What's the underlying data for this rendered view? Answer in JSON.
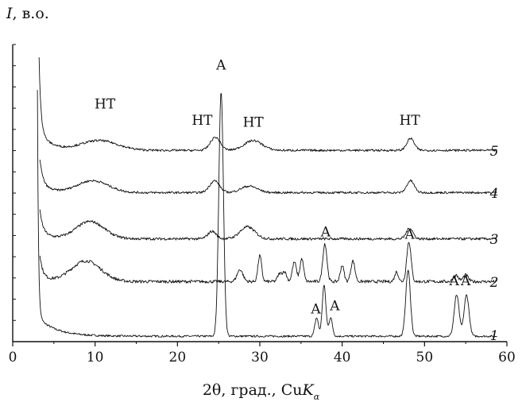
{
  "chart_data": {
    "type": "line",
    "title": "",
    "ylabel": {
      "symbol": "I",
      "unit": ", в.о."
    },
    "xlabel": {
      "main": "2θ, град., Cu",
      "k": "K",
      "sub": "α"
    },
    "xlim": [
      0,
      60
    ],
    "xticks": [
      0,
      10,
      20,
      30,
      40,
      50,
      60
    ],
    "y_tick_count": 14,
    "grid": false,
    "legend": "none",
    "series": [
      {
        "label": "1",
        "offset": 0.2,
        "baseline": 0.05,
        "start": 3.0,
        "decay": {
          "amp": 10.5,
          "tau": 0.12,
          "amp2": 0.9,
          "tau2": 2.2
        },
        "noise": 0.045,
        "peaks": [
          {
            "x": 25.3,
            "h": 11.3,
            "w": 0.28
          },
          {
            "x": 36.9,
            "h": 0.85,
            "w": 0.22
          },
          {
            "x": 37.8,
            "h": 2.35,
            "w": 0.22
          },
          {
            "x": 38.6,
            "h": 0.85,
            "w": 0.22
          },
          {
            "x": 48.0,
            "h": 3.05,
            "w": 0.28
          },
          {
            "x": 53.9,
            "h": 1.9,
            "w": 0.3
          },
          {
            "x": 55.1,
            "h": 1.9,
            "w": 0.3
          }
        ]
      },
      {
        "label": "2",
        "offset": 2.65,
        "baseline": 0.12,
        "start": 3.3,
        "decay": {
          "amp": 0.9,
          "tau": 0.3,
          "amp2": 0.35,
          "tau2": 1.0
        },
        "noise": 0.07,
        "peaks": [
          {
            "x": 8.9,
            "h": 0.95,
            "w": 1.8
          },
          {
            "x": 27.6,
            "h": 0.55,
            "w": 0.35
          },
          {
            "x": 30.0,
            "h": 1.2,
            "w": 0.22
          },
          {
            "x": 32.4,
            "h": 0.35,
            "w": 0.25
          },
          {
            "x": 33.0,
            "h": 0.45,
            "w": 0.25
          },
          {
            "x": 34.2,
            "h": 0.9,
            "w": 0.25
          },
          {
            "x": 35.1,
            "h": 1.05,
            "w": 0.22
          },
          {
            "x": 37.9,
            "h": 1.75,
            "w": 0.25
          },
          {
            "x": 40.0,
            "h": 0.75,
            "w": 0.22
          },
          {
            "x": 41.3,
            "h": 0.95,
            "w": 0.25
          },
          {
            "x": 46.6,
            "h": 0.45,
            "w": 0.22
          },
          {
            "x": 48.1,
            "h": 1.85,
            "w": 0.26
          },
          {
            "x": 53.8,
            "h": 0.3,
            "w": 0.3
          },
          {
            "x": 55.0,
            "h": 0.3,
            "w": 0.3
          }
        ]
      },
      {
        "label": "3",
        "offset": 4.62,
        "baseline": 0.12,
        "start": 3.3,
        "decay": {
          "amp": 1.0,
          "tau": 0.35,
          "amp2": 0.35,
          "tau2": 1.2
        },
        "noise": 0.06,
        "peaks": [
          {
            "x": 9.4,
            "h": 0.8,
            "w": 1.7
          },
          {
            "x": 24.2,
            "h": 0.35,
            "w": 0.5
          },
          {
            "x": 28.5,
            "h": 0.55,
            "w": 0.9
          },
          {
            "x": 48.2,
            "h": 0.5,
            "w": 0.4
          }
        ]
      },
      {
        "label": "4",
        "offset": 6.75,
        "baseline": 0.12,
        "start": 3.3,
        "decay": {
          "amp": 1.1,
          "tau": 0.35,
          "amp2": 0.45,
          "tau2": 1.2
        },
        "noise": 0.05,
        "peaks": [
          {
            "x": 9.7,
            "h": 0.55,
            "w": 1.9
          },
          {
            "x": 24.5,
            "h": 0.55,
            "w": 0.6
          },
          {
            "x": 28.7,
            "h": 0.3,
            "w": 1.0
          },
          {
            "x": 48.3,
            "h": 0.55,
            "w": 0.45
          }
        ]
      },
      {
        "label": "5",
        "offset": 8.7,
        "baseline": 0.12,
        "start": 3.2,
        "decay": {
          "amp": 3.4,
          "tau": 0.22,
          "amp2": 0.9,
          "tau2": 1.4
        },
        "noise": 0.05,
        "peaks": [
          {
            "x": 10.5,
            "h": 0.45,
            "w": 2.2
          },
          {
            "x": 24.6,
            "h": 0.6,
            "w": 0.6
          },
          {
            "x": 29.2,
            "h": 0.45,
            "w": 1.1
          },
          {
            "x": 48.3,
            "h": 0.55,
            "w": 0.45
          }
        ]
      }
    ],
    "annotations": [
      {
        "text": "HT",
        "x": 11.2,
        "y": 10.75
      },
      {
        "text": "HT",
        "x": 23.0,
        "y": 10.0
      },
      {
        "text": "HT",
        "x": 29.2,
        "y": 9.9
      },
      {
        "text": "HT",
        "x": 48.2,
        "y": 10.0
      },
      {
        "text": "A",
        "x": 25.3,
        "y": 12.55
      },
      {
        "text": "A",
        "x": 38.0,
        "y": 4.85
      },
      {
        "text": "A",
        "x": 48.2,
        "y": 4.75
      },
      {
        "text": "A",
        "x": 53.6,
        "y": 2.6
      },
      {
        "text": "A",
        "x": 55.0,
        "y": 2.6
      },
      {
        "text": "A",
        "x": 36.8,
        "y": 1.3
      },
      {
        "text": "A",
        "x": 39.1,
        "y": 1.45
      }
    ]
  }
}
